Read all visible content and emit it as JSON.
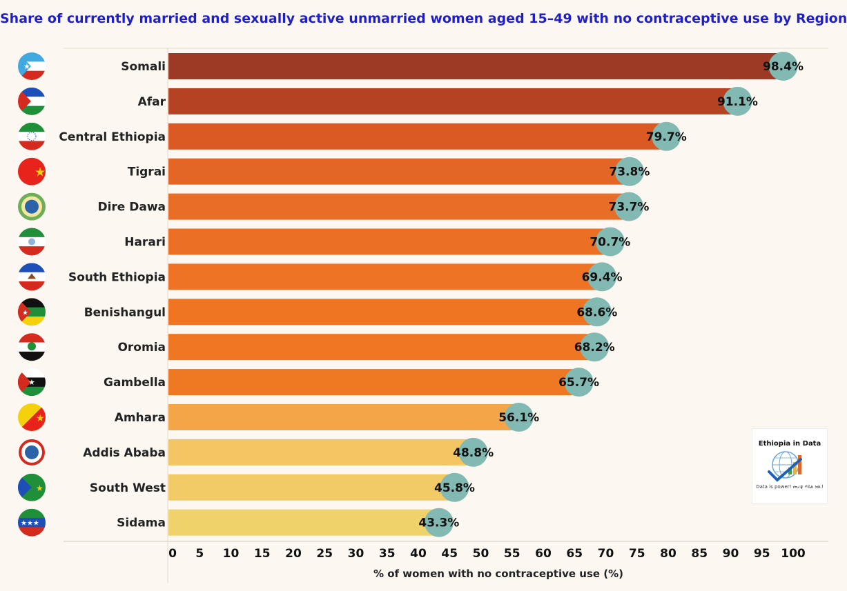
{
  "title": "Share of currently married and sexually active unmarried women aged 15–49 with no contraceptive use by Region",
  "logo": {
    "title": "Ethiopia in Data",
    "tagline": "Data is power! መረጃ ሃይል ነው!"
  },
  "chart_data": {
    "type": "bar",
    "orientation": "horizontal",
    "title": "Share of currently married and sexually active unmarried women aged 15–49 with no contraceptive use by Region",
    "xlabel": "% of women with no contraceptive use (%)",
    "ylabel": "",
    "xlim": [
      0,
      100
    ],
    "xticks": [
      0,
      5,
      10,
      15,
      20,
      25,
      30,
      35,
      40,
      45,
      50,
      55,
      60,
      65,
      70,
      75,
      80,
      85,
      90,
      95,
      100
    ],
    "grid": false,
    "value_suffix": "%",
    "bar_colors": [
      "#9c3a25",
      "#b54223",
      "#db5a24",
      "#e46627",
      "#e86d26",
      "#ec7024",
      "#ee7324",
      "#ef7522",
      "#ef7622",
      "#ef7822",
      "#f4a548",
      "#f4c663",
      "#f2ca66",
      "#f0d26b"
    ],
    "marker_color": "#82b9b2",
    "categories": [
      "Somali",
      "Afar",
      "Central Ethiopia",
      "Tigrai",
      "Dire Dawa",
      "Harari",
      "South Ethiopia",
      "Benishangul",
      "Oromia",
      "Gambella",
      "Amhara",
      "Addis Ababa",
      "South West",
      "Sidama"
    ],
    "values": [
      98.4,
      91.1,
      79.7,
      73.8,
      73.7,
      70.7,
      69.4,
      68.6,
      68.2,
      65.7,
      56.1,
      48.8,
      45.8,
      43.3
    ],
    "labels": [
      "98.4%",
      "91.1%",
      "79.7%",
      "73.8%",
      "73.7%",
      "70.7%",
      "69.4%",
      "68.6%",
      "68.2%",
      "65.7%",
      "56.1%",
      "48.8%",
      "45.8%",
      "43.3%"
    ]
  },
  "flags": [
    {
      "region": "Somali",
      "icon": "somali-flag-icon",
      "colors": [
        "#41a8e0",
        "#ffffff",
        "#d52b1e"
      ]
    },
    {
      "region": "Afar",
      "icon": "afar-flag-icon",
      "colors": [
        "#1e4fb8",
        "#ffffff",
        "#d52b1e",
        "#1f8f3a"
      ]
    },
    {
      "region": "Central Ethiopia",
      "icon": "central-ethiopia-flag-icon",
      "colors": [
        "#1f8f3a",
        "#ffffff",
        "#d52b1e"
      ]
    },
    {
      "region": "Tigrai",
      "icon": "tigrai-flag-icon",
      "colors": [
        "#e8231c",
        "#f5d10c"
      ]
    },
    {
      "region": "Dire Dawa",
      "icon": "dire-dawa-seal-icon",
      "colors": [
        "#6fae58",
        "#2c62a8",
        "#f3e7a2"
      ]
    },
    {
      "region": "Harari",
      "icon": "harari-flag-icon",
      "colors": [
        "#1f8f3a",
        "#ffffff",
        "#d52b1e"
      ]
    },
    {
      "region": "South Ethiopia",
      "icon": "south-ethiopia-flag-icon",
      "colors": [
        "#1e4fb8",
        "#ffffff",
        "#d52b1e"
      ]
    },
    {
      "region": "Benishangul",
      "icon": "benishangul-flag-icon",
      "colors": [
        "#111111",
        "#1f8f3a",
        "#f5d10c",
        "#d52b1e"
      ]
    },
    {
      "region": "Oromia",
      "icon": "oromia-flag-icon",
      "colors": [
        "#111111",
        "#d52b1e",
        "#ffffff",
        "#1f8f3a"
      ]
    },
    {
      "region": "Gambella",
      "icon": "gambella-flag-icon",
      "colors": [
        "#1f8f3a",
        "#ffffff",
        "#111111",
        "#d52b1e"
      ]
    },
    {
      "region": "Amhara",
      "icon": "amhara-flag-icon",
      "colors": [
        "#e8231c",
        "#f5d10c"
      ]
    },
    {
      "region": "Addis Ababa",
      "icon": "addis-ababa-seal-icon",
      "colors": [
        "#d52b1e",
        "#2c62a8",
        "#ffffff"
      ]
    },
    {
      "region": "South West",
      "icon": "south-west-flag-icon",
      "colors": [
        "#1f8f3a",
        "#1e4fb8",
        "#f5d10c"
      ]
    },
    {
      "region": "Sidama",
      "icon": "sidama-flag-icon",
      "colors": [
        "#1e4fb8",
        "#1f8f3a",
        "#d52b1e",
        "#ffffff"
      ]
    }
  ]
}
